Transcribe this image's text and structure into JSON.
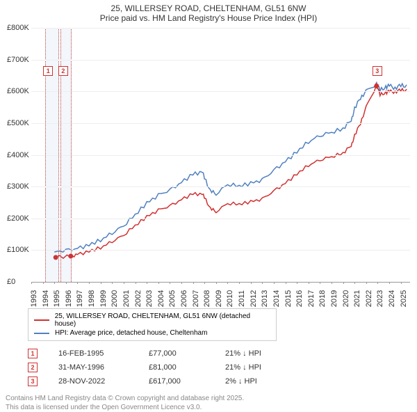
{
  "title": {
    "line1": "25, WILLERSEY ROAD, CHELTENHAM, GL51 6NW",
    "line2": "Price paid vs. HM Land Registry's House Price Index (HPI)"
  },
  "chart": {
    "type": "line",
    "background_color": "#ffffff",
    "grid_color": "#eeeeee",
    "axis_color": "#999999",
    "label_fontsize": 11,
    "ymin": 0,
    "ymax": 800000,
    "ytick_step": 100000,
    "yticks": [
      "£0",
      "£100K",
      "£200K",
      "£300K",
      "£400K",
      "£500K",
      "£600K",
      "£700K",
      "£800K"
    ],
    "xmin": 1993,
    "xmax": 2025.8,
    "xticks": [
      1993,
      1994,
      1995,
      1996,
      1997,
      1998,
      1999,
      2000,
      2001,
      2002,
      2003,
      2004,
      2005,
      2006,
      2007,
      2008,
      2009,
      2010,
      2011,
      2012,
      2013,
      2014,
      2015,
      2016,
      2017,
      2018,
      2019,
      2020,
      2021,
      2022,
      2023,
      2024,
      2025
    ],
    "highlight_bands": [
      {
        "from": 1994.2,
        "to": 1995.3
      },
      {
        "from": 1995.5,
        "to": 1996.4
      }
    ],
    "series_red": {
      "label": "25, WILLERSEY ROAD, CHELTENHAM, GL51 6NW (detached house)",
      "color": "#d03030",
      "points": [
        [
          1995.12,
          77000
        ],
        [
          1996.42,
          81000
        ],
        [
          1997,
          85000
        ],
        [
          1998,
          96000
        ],
        [
          1999,
          108000
        ],
        [
          2000,
          128000
        ],
        [
          2001,
          148000
        ],
        [
          2002,
          178000
        ],
        [
          2003,
          205000
        ],
        [
          2004,
          225000
        ],
        [
          2005,
          238000
        ],
        [
          2006,
          258000
        ],
        [
          2007,
          278000
        ],
        [
          2007.8,
          275000
        ],
        [
          2008,
          268000
        ],
        [
          2008.5,
          230000
        ],
        [
          2009,
          222000
        ],
        [
          2010,
          248000
        ],
        [
          2011,
          245000
        ],
        [
          2012,
          252000
        ],
        [
          2013,
          260000
        ],
        [
          2014,
          285000
        ],
        [
          2015,
          310000
        ],
        [
          2016,
          340000
        ],
        [
          2017,
          368000
        ],
        [
          2018,
          385000
        ],
        [
          2019,
          395000
        ],
        [
          2020,
          405000
        ],
        [
          2020.7,
          430000
        ],
        [
          2021,
          460000
        ],
        [
          2021.5,
          500000
        ],
        [
          2022,
          550000
        ],
        [
          2022.9,
          617000
        ],
        [
          2023.2,
          590000
        ],
        [
          2023.7,
          595000
        ],
        [
          2024,
          600000
        ],
        [
          2024.5,
          598000
        ],
        [
          2025,
          605000
        ],
        [
          2025.5,
          602000
        ]
      ]
    },
    "series_blue": {
      "label": "HPI: Average price, detached house, Cheltenham",
      "color": "#5080c0",
      "points": [
        [
          1995,
          94000
        ],
        [
          1996,
          98000
        ],
        [
          1997,
          104000
        ],
        [
          1998,
          116000
        ],
        [
          1999,
          132000
        ],
        [
          2000,
          155000
        ],
        [
          2001,
          178000
        ],
        [
          2002,
          212000
        ],
        [
          2003,
          248000
        ],
        [
          2004,
          272000
        ],
        [
          2005,
          288000
        ],
        [
          2006,
          312000
        ],
        [
          2007,
          340000
        ],
        [
          2007.8,
          345000
        ],
        [
          2008,
          330000
        ],
        [
          2008.5,
          285000
        ],
        [
          2009,
          278000
        ],
        [
          2010,
          308000
        ],
        [
          2011,
          302000
        ],
        [
          2012,
          310000
        ],
        [
          2013,
          320000
        ],
        [
          2014,
          350000
        ],
        [
          2015,
          378000
        ],
        [
          2016,
          410000
        ],
        [
          2017,
          442000
        ],
        [
          2018,
          462000
        ],
        [
          2019,
          472000
        ],
        [
          2020,
          482000
        ],
        [
          2020.7,
          510000
        ],
        [
          2021,
          545000
        ],
        [
          2021.5,
          580000
        ],
        [
          2022,
          600000
        ],
        [
          2022.9,
          622000
        ],
        [
          2023.2,
          605000
        ],
        [
          2023.7,
          612000
        ],
        [
          2024,
          618000
        ],
        [
          2024.5,
          610000
        ],
        [
          2025,
          620000
        ],
        [
          2025.5,
          615000
        ]
      ]
    },
    "transaction_dots": {
      "color": "#d03030",
      "points": [
        [
          1995.12,
          77000
        ],
        [
          1996.42,
          81000
        ],
        [
          2022.9,
          617000
        ]
      ]
    },
    "markers_on_chart": [
      {
        "n": "1",
        "x": 1994.4,
        "y": 680000,
        "color": "#d03030"
      },
      {
        "n": "2",
        "x": 1995.7,
        "y": 680000,
        "color": "#d03030"
      },
      {
        "n": "3",
        "x": 2022.9,
        "y": 680000,
        "color": "#d03030"
      }
    ]
  },
  "legend": {
    "items": [
      {
        "color": "#d03030",
        "label": "25, WILLERSEY ROAD, CHELTENHAM, GL51 6NW (detached house)"
      },
      {
        "color": "#5080c0",
        "label": "HPI: Average price, detached house, Cheltenham"
      }
    ]
  },
  "transactions": [
    {
      "n": "1",
      "date": "16-FEB-1995",
      "price": "£77,000",
      "pct": "21% ↓ HPI",
      "color": "#d03030"
    },
    {
      "n": "2",
      "date": "31-MAY-1996",
      "price": "£81,000",
      "pct": "21% ↓ HPI",
      "color": "#d03030"
    },
    {
      "n": "3",
      "date": "28-NOV-2022",
      "price": "£617,000",
      "pct": "2% ↓ HPI",
      "color": "#d03030"
    }
  ],
  "footer": {
    "line1": "Contains HM Land Registry data © Crown copyright and database right 2025.",
    "line2": "This data is licensed under the Open Government Licence v3.0."
  }
}
